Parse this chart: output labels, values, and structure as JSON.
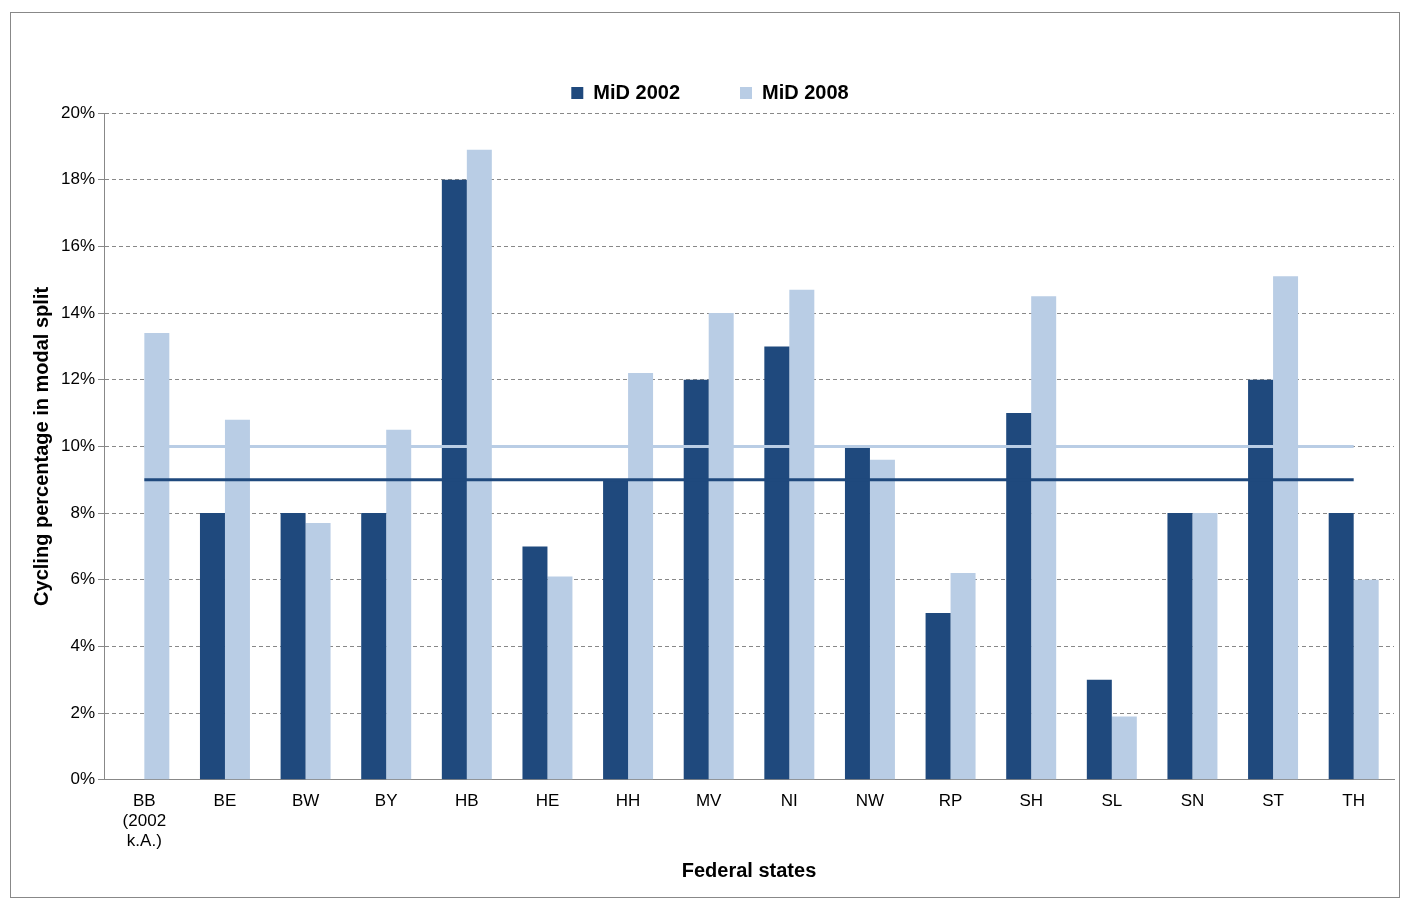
{
  "chart_data": {
    "type": "bar",
    "xlabel": "Federal states",
    "ylabel": "Cycling percentage in modal split",
    "categories": [
      "BB (2002 k.A.)",
      "BE",
      "BW",
      "BY",
      "HB",
      "HE",
      "HH",
      "MV",
      "NI",
      "NW",
      "RP",
      "SH",
      "SL",
      "SN",
      "ST",
      "TH"
    ],
    "series": [
      {
        "name": "MiD 2002",
        "color": "#1f497d",
        "values": [
          null,
          8,
          8,
          8,
          18,
          7,
          9,
          12,
          13,
          10,
          5,
          11,
          3,
          8,
          12,
          8
        ]
      },
      {
        "name": "MiD 2008",
        "color": "#b9cde5",
        "values": [
          13.4,
          10.8,
          7.7,
          10.5,
          18.9,
          6.1,
          12.2,
          14.0,
          14.7,
          9.6,
          6.2,
          14.5,
          1.9,
          8.0,
          15.1,
          6.0
        ]
      }
    ],
    "ylim": [
      0,
      20
    ],
    "yticks": [
      {
        "value": 0,
        "label": "0%"
      },
      {
        "value": 2,
        "label": "2%"
      },
      {
        "value": 4,
        "label": "4%"
      },
      {
        "value": 6,
        "label": "6%"
      },
      {
        "value": 8,
        "label": "8%"
      },
      {
        "value": 10,
        "label": "10%"
      },
      {
        "value": 12,
        "label": "12%"
      },
      {
        "value": 14,
        "label": "14%"
      },
      {
        "value": 16,
        "label": "16%"
      },
      {
        "value": 18,
        "label": "18%"
      },
      {
        "value": 20,
        "label": "20%"
      }
    ],
    "ref_lines": [
      {
        "axis": "y",
        "value": 10,
        "label": null,
        "color": "#b9cde5"
      },
      {
        "axis": "y",
        "value": 9,
        "label": null,
        "color": "#1f497d"
      }
    ],
    "grid": "y",
    "legend": "top"
  }
}
